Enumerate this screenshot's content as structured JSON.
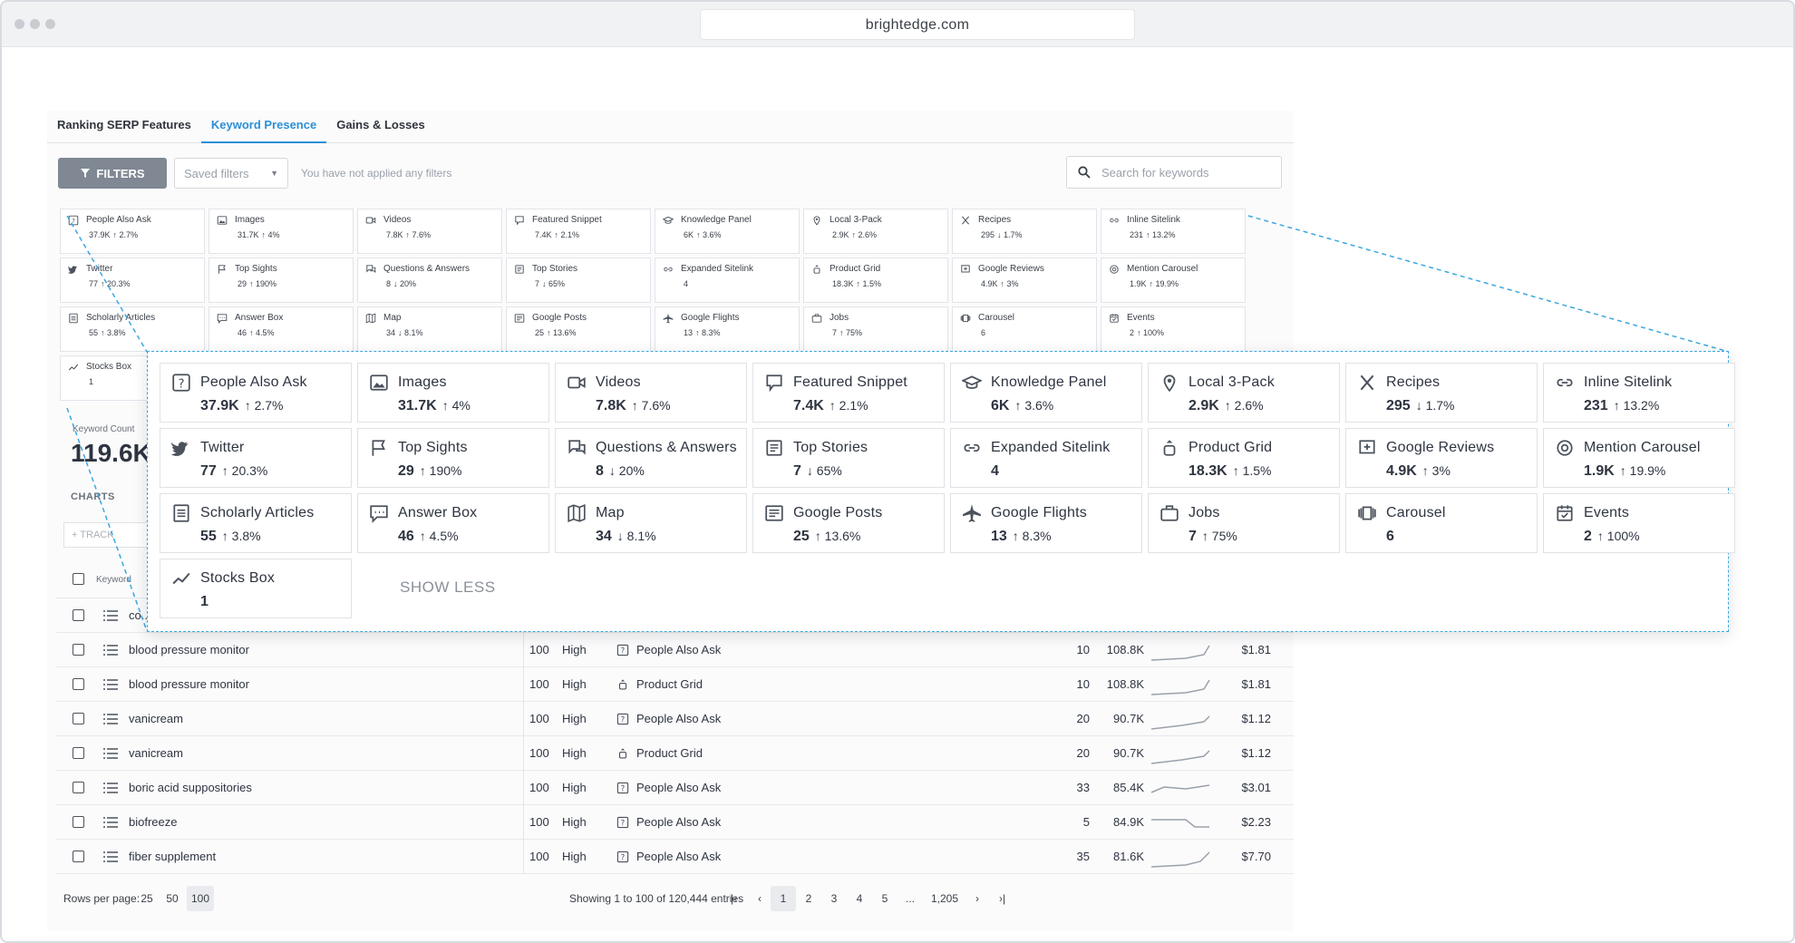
{
  "browser": {
    "url": "brightedge.com"
  },
  "tabs": [
    {
      "label": "Ranking SERP Features"
    },
    {
      "label": "Keyword Presence"
    },
    {
      "label": "Gains & Losses"
    }
  ],
  "filterbar": {
    "filters_label": "FILTERS",
    "saved_filters": "Saved filters",
    "no_filters_text": "You have not applied any filters",
    "search_placeholder": "Search for keywords"
  },
  "features": [
    {
      "name": "People Also Ask",
      "value": "37.9K",
      "change": "↑ 2.7%",
      "icon": "question-icon"
    },
    {
      "name": "Images",
      "value": "31.7K",
      "change": "↑ 4%",
      "icon": "image-icon"
    },
    {
      "name": "Videos",
      "value": "7.8K",
      "change": "↑ 7.6%",
      "icon": "video-icon"
    },
    {
      "name": "Featured Snippet",
      "value": "7.4K",
      "change": "↑ 2.1%",
      "icon": "snippet-icon"
    },
    {
      "name": "Knowledge Panel",
      "value": "6K",
      "change": "↑ 3.6%",
      "icon": "graduation-cap-icon"
    },
    {
      "name": "Local 3-Pack",
      "value": "2.9K",
      "change": "↑ 2.6%",
      "icon": "map-pin-icon"
    },
    {
      "name": "Recipes",
      "value": "295",
      "change": "↓ 1.7%",
      "icon": "utensils-icon"
    },
    {
      "name": "Inline Sitelink",
      "value": "231",
      "change": "↑ 13.2%",
      "icon": "link-icon"
    },
    {
      "name": "Twitter",
      "value": "77",
      "change": "↑ 20.3%",
      "icon": "twitter-icon"
    },
    {
      "name": "Top Sights",
      "value": "29",
      "change": "↑ 190%",
      "icon": "flag-icon"
    },
    {
      "name": "Questions & Answers",
      "value": "8",
      "change": "↓ 20%",
      "icon": "chat-icon"
    },
    {
      "name": "Top Stories",
      "value": "7",
      "change": "↓ 65%",
      "icon": "newspaper-icon"
    },
    {
      "name": "Expanded Sitelink",
      "value": "4",
      "change": "",
      "icon": "link-icon"
    },
    {
      "name": "Product Grid",
      "value": "18.3K",
      "change": "↑ 1.5%",
      "icon": "product-icon"
    },
    {
      "name": "Google Reviews",
      "value": "4.9K",
      "change": "↑ 3%",
      "icon": "review-icon"
    },
    {
      "name": "Mention Carousel",
      "value": "1.9K",
      "change": "↑ 19.9%",
      "icon": "at-icon"
    },
    {
      "name": "Scholarly Articles",
      "value": "55",
      "change": "↑ 3.8%",
      "icon": "article-icon"
    },
    {
      "name": "Answer Box",
      "value": "46",
      "change": "↑ 4.5%",
      "icon": "answer-box-icon"
    },
    {
      "name": "Map",
      "value": "34",
      "change": "↓ 8.1%",
      "icon": "map-icon"
    },
    {
      "name": "Google Posts",
      "value": "25",
      "change": "↑ 13.6%",
      "icon": "posts-icon"
    },
    {
      "name": "Google Flights",
      "value": "13",
      "change": "↑ 8.3%",
      "icon": "plane-icon"
    },
    {
      "name": "Jobs",
      "value": "7",
      "change": "↑ 75%",
      "icon": "briefcase-icon"
    },
    {
      "name": "Carousel",
      "value": "6",
      "change": "",
      "icon": "carousel-icon"
    },
    {
      "name": "Events",
      "value": "2",
      "change": "↑ 100%",
      "icon": "calendar-icon"
    },
    {
      "name": "Stocks Box",
      "value": "1",
      "change": "",
      "icon": "trend-icon"
    }
  ],
  "show_less": "SHOW LESS",
  "summary": {
    "keyword_count_label": "Keyword Count",
    "keyword_count": "119.6K",
    "charts_label": "CHARTS",
    "track_label": "+ TRACK"
  },
  "table": {
    "header_keyword": "Keyword",
    "rows": [
      {
        "keyword": "co...",
        "volume": "",
        "competition": "",
        "feature": "",
        "rank": "",
        "search_volume": "",
        "cpc": ""
      },
      {
        "keyword": "blood pressure monitor",
        "volume": "100",
        "competition": "High",
        "feature": "People Also Ask",
        "feature_icon": "question-icon",
        "rank": "10",
        "search_volume": "108.8K",
        "cpc": "$1.81"
      },
      {
        "keyword": "blood pressure monitor",
        "volume": "100",
        "competition": "High",
        "feature": "Product Grid",
        "feature_icon": "product-icon",
        "rank": "10",
        "search_volume": "108.8K",
        "cpc": "$1.81"
      },
      {
        "keyword": "vanicream",
        "volume": "100",
        "competition": "High",
        "feature": "People Also Ask",
        "feature_icon": "question-icon",
        "rank": "20",
        "search_volume": "90.7K",
        "cpc": "$1.12"
      },
      {
        "keyword": "vanicream",
        "volume": "100",
        "competition": "High",
        "feature": "Product Grid",
        "feature_icon": "product-icon",
        "rank": "20",
        "search_volume": "90.7K",
        "cpc": "$1.12"
      },
      {
        "keyword": "boric acid suppositories",
        "volume": "100",
        "competition": "High",
        "feature": "People Also Ask",
        "feature_icon": "question-icon",
        "rank": "33",
        "search_volume": "85.4K",
        "cpc": "$3.01"
      },
      {
        "keyword": "biofreeze",
        "volume": "100",
        "competition": "High",
        "feature": "People Also Ask",
        "feature_icon": "question-icon",
        "rank": "5",
        "search_volume": "84.9K",
        "cpc": "$2.23"
      },
      {
        "keyword": "fiber supplement",
        "volume": "100",
        "competition": "High",
        "feature": "People Also Ask",
        "feature_icon": "question-icon",
        "rank": "35",
        "search_volume": "81.6K",
        "cpc": "$7.70"
      }
    ]
  },
  "pagination": {
    "rows_per_page_label": "Rows per page:",
    "rows_options": [
      "25",
      "50",
      "100"
    ],
    "showing": "Showing 1 to 100 of 120,444 entries",
    "pages": [
      "1",
      "2",
      "3",
      "4",
      "5",
      "...",
      "1,205"
    ]
  },
  "colors": {
    "accent": "#2c8fd6",
    "zoom_border": "#3ba7e0",
    "filters_button": "#7f8893"
  }
}
